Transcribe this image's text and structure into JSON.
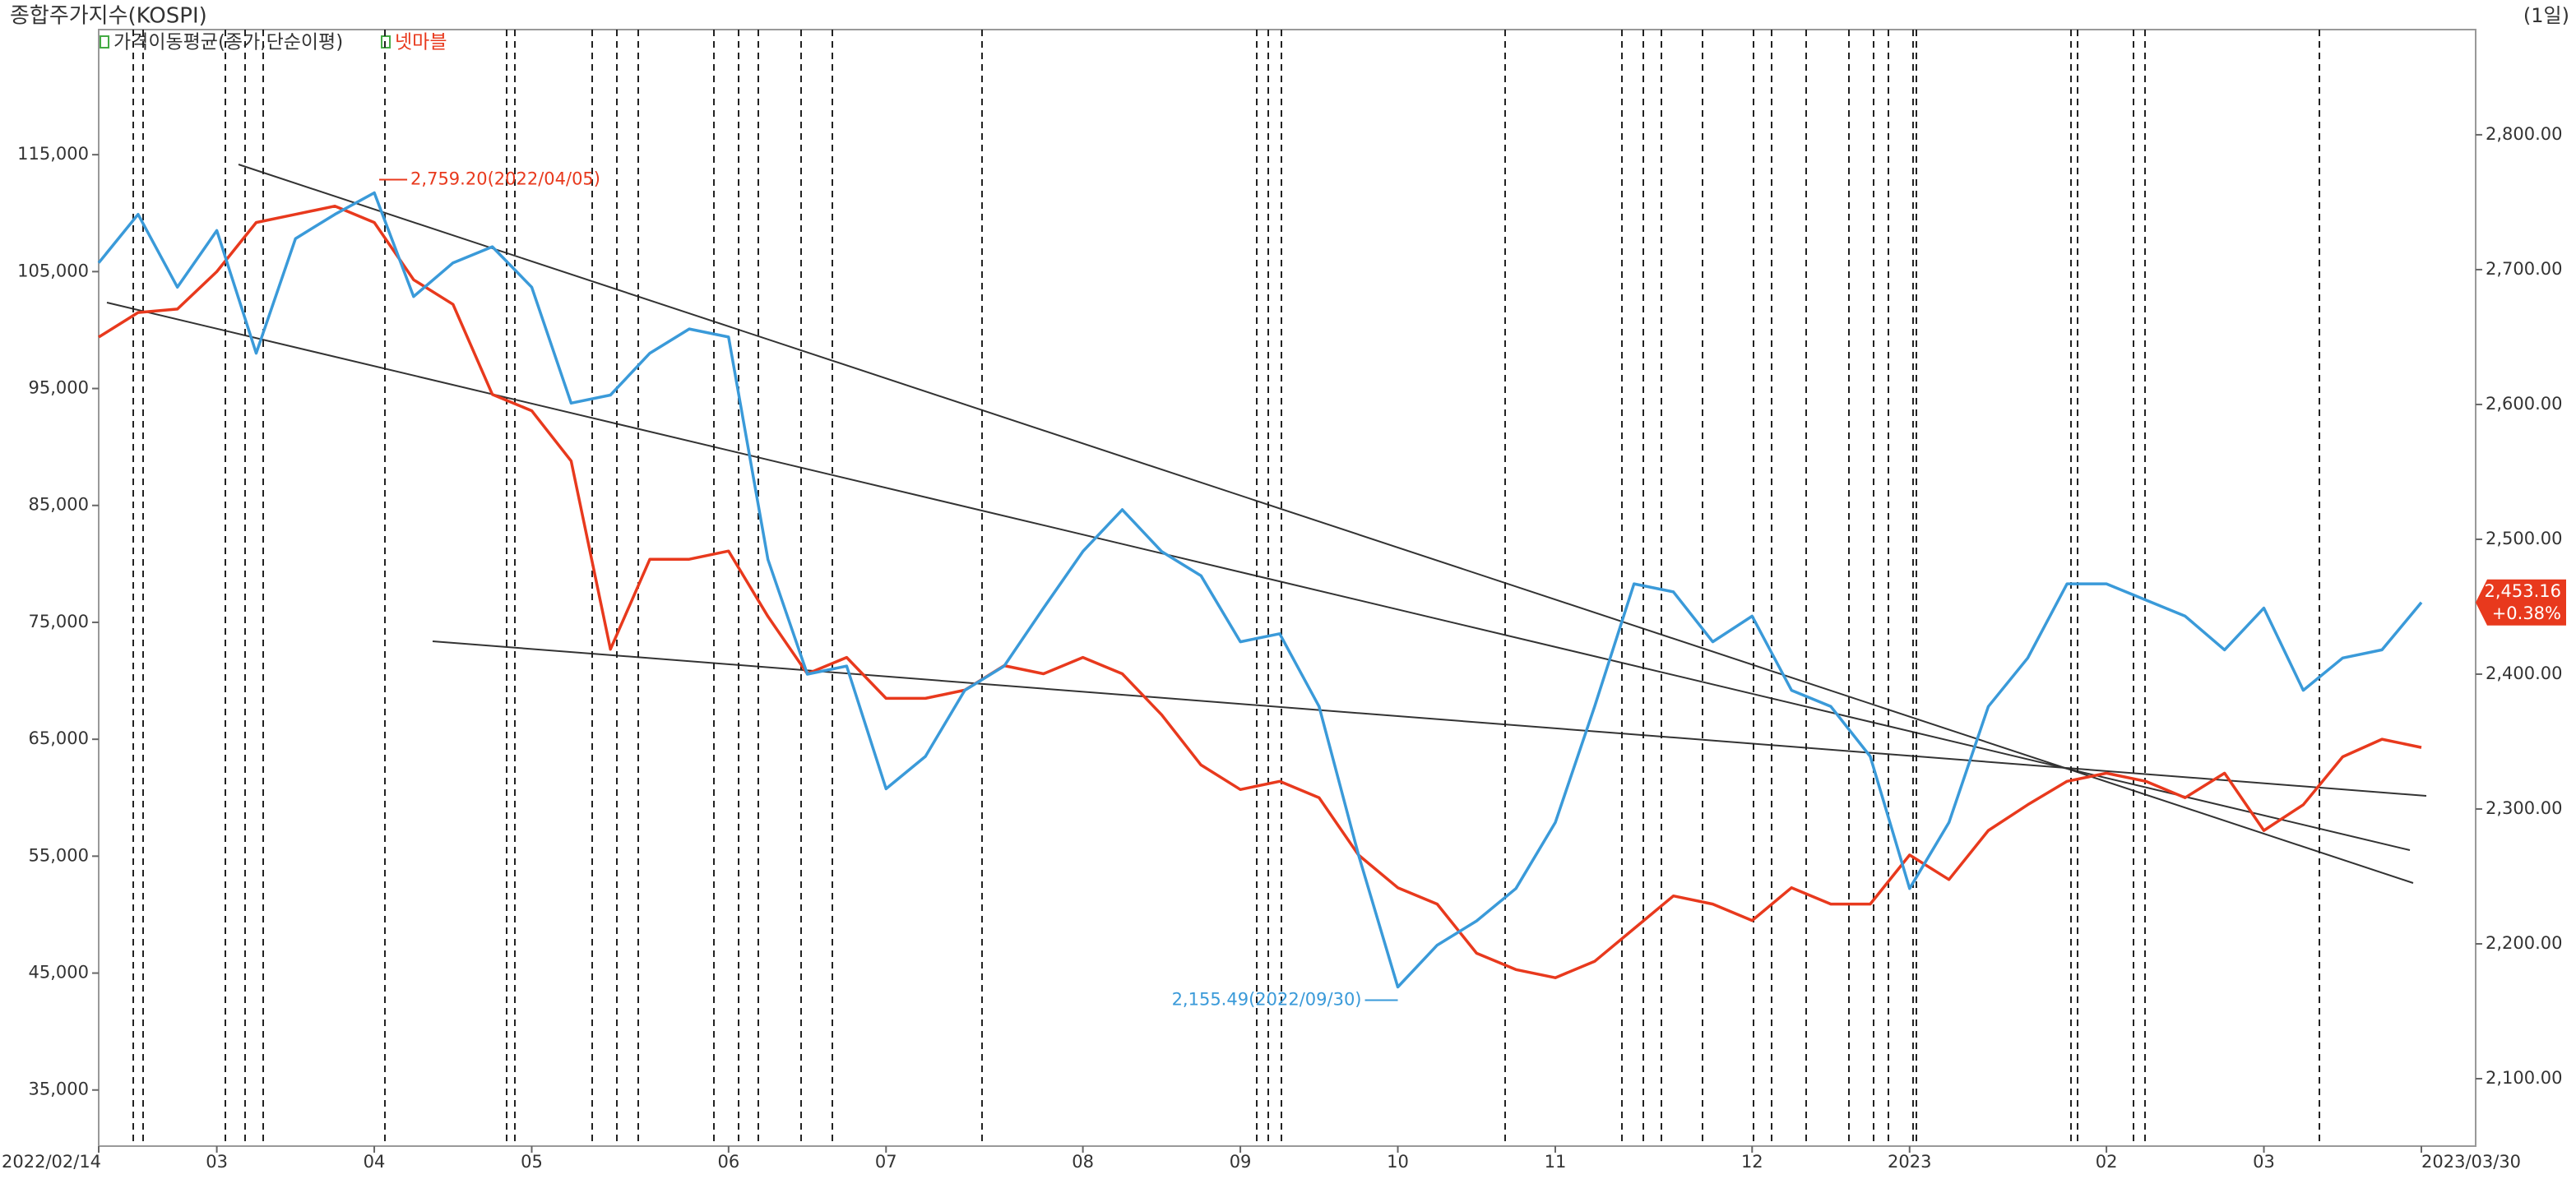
{
  "chart_data": {
    "type": "line",
    "title": "종합주가지수(KOSPI)",
    "period_label": "(1일)",
    "indicator_label": "가격이동평균(종가,단순이평)",
    "categories": [
      "2022/02/14",
      null,
      null,
      "03",
      null,
      null,
      null,
      "04",
      null,
      null,
      null,
      "05",
      null,
      null,
      null,
      null,
      "06",
      null,
      null,
      null,
      "07",
      null,
      null,
      null,
      null,
      "08",
      null,
      null,
      null,
      "09",
      null,
      null,
      null,
      "10",
      null,
      null,
      null,
      "11",
      null,
      null,
      null,
      null,
      "12",
      null,
      null,
      null,
      "2023",
      null,
      null,
      null,
      null,
      "02",
      null,
      null,
      null,
      "03",
      null,
      null,
      null,
      "2023/03/30"
    ],
    "series": [
      {
        "color": "#3a9ad9",
        "axis": "y2",
        "values": [
          2705,
          2741,
          2687,
          2729,
          2638,
          2723,
          2741,
          2757,
          2680,
          2705,
          2717,
          2687,
          2601,
          2607,
          2638,
          2656,
          2650,
          2485,
          2400,
          2406,
          2315,
          2339,
          2388,
          2406,
          2449,
          2491,
          2522,
          2491,
          2473,
          2424,
          2430,
          2376,
          2266,
          2168,
          2199,
          2217,
          2241,
          2290,
          2376,
          2467,
          2461,
          2424,
          2443,
          2388,
          2376,
          2339,
          2241,
          2290,
          2376,
          2412,
          2467,
          2467,
          2455,
          2443,
          2418,
          2449,
          2388,
          2412,
          2418,
          2453.16
        ]
      },
      {
        "name": "넷마블",
        "color": "#e8391d",
        "values": [
          99400,
          101500,
          101800,
          105000,
          109200,
          109900,
          110600,
          109200,
          104300,
          102200,
          94500,
          93100,
          88800,
          72700,
          80400,
          80400,
          81100,
          75500,
          70600,
          72000,
          68500,
          68500,
          69200,
          71300,
          70600,
          72000,
          70600,
          67100,
          62800,
          60700,
          61400,
          60000,
          55100,
          52300,
          50900,
          46700,
          45300,
          44600,
          46000,
          48800,
          51600,
          50900,
          49500,
          52300,
          50900,
          50900,
          55100,
          53000,
          57200,
          59400,
          61400,
          62100,
          61400,
          60000,
          62100,
          57200,
          59400,
          63500,
          65000,
          64300
        ]
      }
    ],
    "ylim": [
      30200,
      125700
    ],
    "yticks": [
      {
        "value": 35000,
        "label": "35,000"
      },
      {
        "value": 45000,
        "label": "45,000"
      },
      {
        "value": 55000,
        "label": "55,000"
      },
      {
        "value": 65000,
        "label": "65,000"
      },
      {
        "value": 75000,
        "label": "75,000"
      },
      {
        "value": 85000,
        "label": "85,000"
      },
      {
        "value": 95000,
        "label": "95,000"
      },
      {
        "value": 105000,
        "label": "105,000"
      },
      {
        "value": 115000,
        "label": "115,000"
      }
    ],
    "y2lim": [
      2050,
      2878
    ],
    "y2ticks": [
      {
        "value": 2100,
        "label": "2,100.00"
      },
      {
        "value": 2200,
        "label": "2,200.00"
      },
      {
        "value": 2300,
        "label": "2,300.00"
      },
      {
        "value": 2400,
        "label": "2,400.00"
      },
      {
        "value": 2500,
        "label": "2,500.00"
      },
      {
        "value": 2600,
        "label": "2,600.00"
      },
      {
        "value": 2700,
        "label": "2,700.00"
      },
      {
        "value": 2800,
        "label": "2,800.00"
      }
    ],
    "high_label": "2,759.20(2022/04/05)",
    "low_label": "2,155.49(2022/09/30)",
    "last_value_label": "2,453.16",
    "change_label": "+0.38%"
  }
}
